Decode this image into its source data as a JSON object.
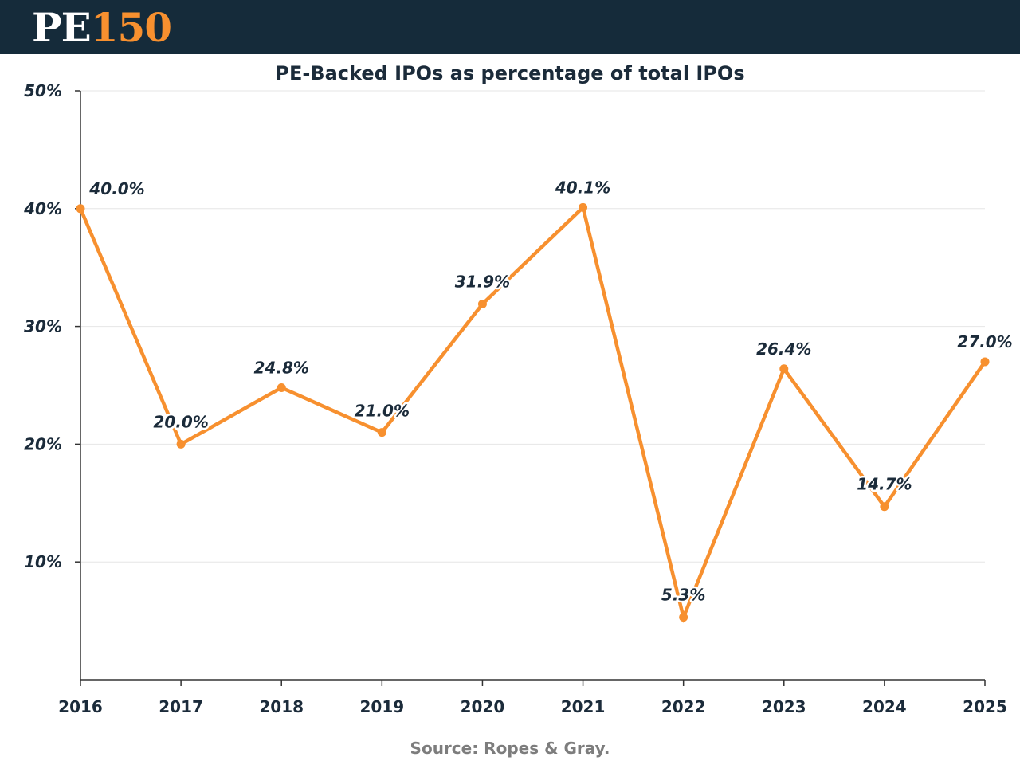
{
  "header": {
    "logo_pe": "PE",
    "logo_num": "150"
  },
  "colors": {
    "header_bg": "#152b3a",
    "accent": "#f7902f",
    "text_dark": "#1b2b3a",
    "source_text": "#7d7d7d",
    "gridline": "#e6e6e6",
    "axis": "#333333"
  },
  "chart_data": {
    "type": "line",
    "title": "PE-Backed IPOs as percentage of total IPOs",
    "xlabel": "",
    "ylabel": "",
    "categories": [
      "2016",
      "2017",
      "2018",
      "2019",
      "2020",
      "2021",
      "2022",
      "2023",
      "2024",
      "2025"
    ],
    "series": [
      {
        "name": "PE-Backed IPOs %",
        "values": [
          40.0,
          20.0,
          24.8,
          21.0,
          31.9,
          40.1,
          5.3,
          26.4,
          14.7,
          27.0
        ],
        "labels": [
          "40.0%",
          "20.0%",
          "24.8%",
          "21.0%",
          "31.9%",
          "40.1%",
          "5.3%",
          "26.4%",
          "14.7%",
          "27.0%"
        ]
      }
    ],
    "ylim": [
      0,
      50
    ],
    "yticks": [
      10,
      20,
      30,
      40,
      50
    ],
    "ytick_labels": [
      "10%",
      "20%",
      "30%",
      "40%",
      "50%"
    ],
    "grid": true,
    "legend": "none",
    "source": "Source: Ropes & Gray."
  }
}
